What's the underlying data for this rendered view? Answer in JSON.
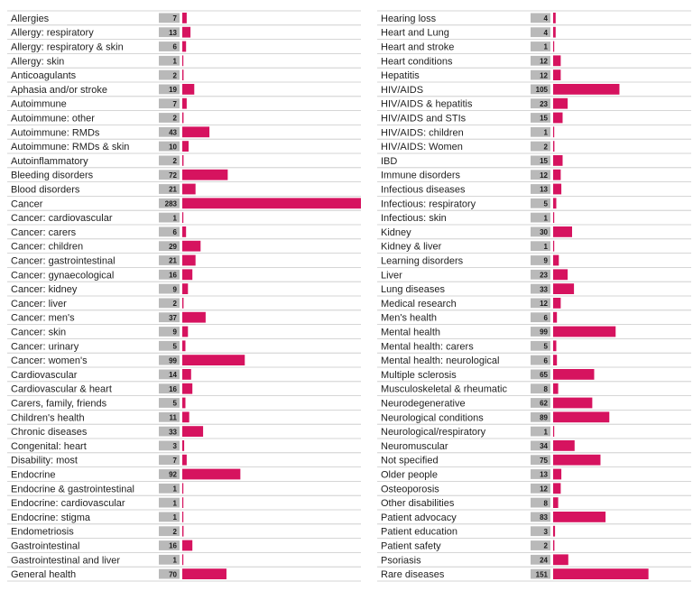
{
  "chart_data": {
    "type": "bar",
    "orientation": "horizontal",
    "bar_color": "#d6135f",
    "badge_color": "#b9b9b9",
    "divider_color": "#c8c8c8",
    "grid": false,
    "legend": "none",
    "xlim": [
      0,
      283
    ],
    "panels": [
      {
        "categories": [
          "Allergies",
          "Allergy: respiratory",
          "Allergy: respiratory & skin",
          "Allergy: skin",
          "Anticoagulants",
          "Aphasia and/or stroke",
          "Autoimmune",
          "Autoimmune: other",
          "Autoimmune: RMDs",
          "Autoimmune: RMDs & skin",
          "Autoinflammatory",
          "Bleeding disorders",
          "Blood disorders",
          "Cancer",
          "Cancer: cardiovascular",
          "Cancer: carers",
          "Cancer: children",
          "Cancer: gastrointestinal",
          "Cancer: gynaecological",
          "Cancer: kidney",
          "Cancer: liver",
          "Cancer: men's",
          "Cancer: skin",
          "Cancer: urinary",
          "Cancer: women's",
          "Cardiovascular",
          "Cardiovascular & heart",
          "Carers, family, friends",
          "Children's health",
          "Chronic diseases",
          "Congenital: heart",
          "Disability: most",
          "Endocrine",
          "Endocrine & gastrointestinal",
          "Endocrine: cardiovascular",
          "Endocrine: stigma",
          "Endometriosis",
          "Gastrointestinal",
          "Gastrointestinal and liver",
          "General health"
        ],
        "values": [
          7,
          13,
          6,
          1,
          2,
          19,
          7,
          2,
          43,
          10,
          2,
          72,
          21,
          283,
          1,
          6,
          29,
          21,
          16,
          9,
          2,
          37,
          9,
          5,
          99,
          14,
          16,
          5,
          11,
          33,
          3,
          7,
          92,
          1,
          1,
          1,
          2,
          16,
          1,
          70
        ]
      },
      {
        "categories": [
          "Hearing loss",
          "Heart and Lung",
          "Heart and stroke",
          "Heart conditions",
          "Hepatitis",
          "HIV/AIDS",
          "HIV/AIDS & hepatitis",
          "HIV/AIDS and STIs",
          "HIV/AIDS: children",
          "HIV/AIDS: Women",
          "IBD",
          "Immune disorders",
          "Infectious diseases",
          "Infectious: respiratory",
          "Infectious: skin",
          "Kidney",
          "Kidney & liver",
          "Learning disorders",
          "Liver",
          "Lung diseases",
          "Medical research",
          "Men's health",
          "Mental health",
          "Mental health: carers",
          "Mental health: neurological",
          "Multiple sclerosis",
          "Musculoskeletal & rheumatic",
          "Neurodegenerative",
          "Neurological conditions",
          "Neurological/respiratory",
          "Neuromuscular",
          "Not specified",
          "Older people",
          "Osteoporosis",
          "Other disabilities",
          "Patient advocacy",
          "Patient education",
          "Patient safety",
          "Psoriasis",
          "Rare diseases"
        ],
        "values": [
          4,
          4,
          1,
          12,
          12,
          105,
          23,
          15,
          1,
          2,
          15,
          12,
          13,
          5,
          1,
          30,
          1,
          9,
          23,
          33,
          12,
          6,
          99,
          5,
          6,
          65,
          8,
          62,
          89,
          1,
          34,
          75,
          13,
          12,
          8,
          83,
          3,
          2,
          24,
          151
        ]
      }
    ]
  }
}
